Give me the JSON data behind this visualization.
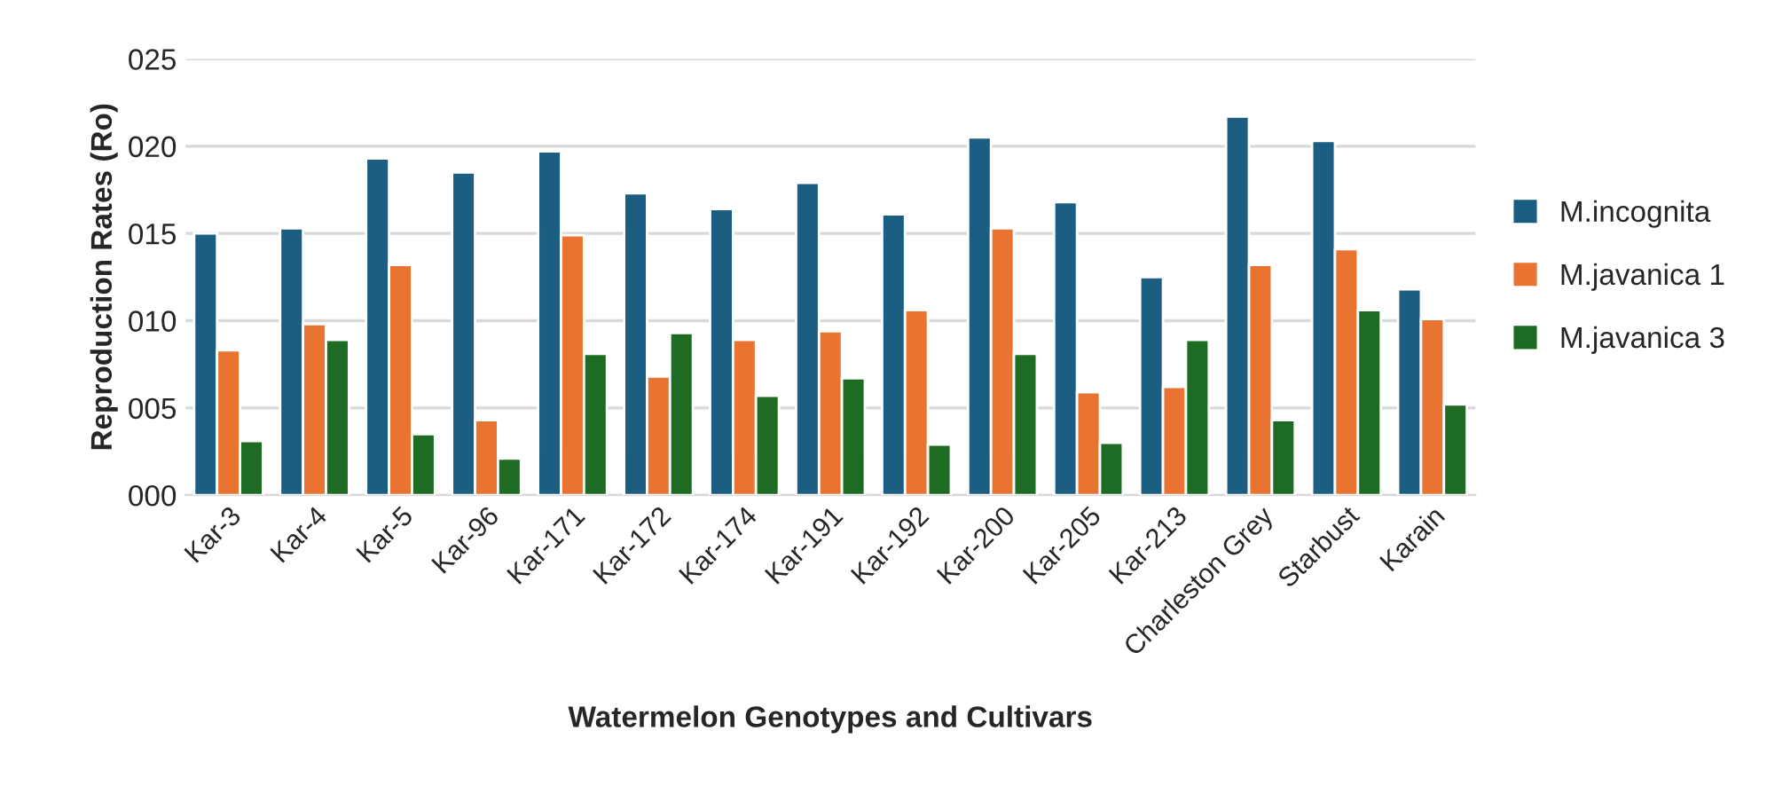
{
  "chart_data": {
    "type": "bar",
    "xlabel": "Watermelon Genotypes and Cultivars",
    "ylabel": "Reproduction Rates (Ro)",
    "categories": [
      "Kar-3",
      "Kar-4",
      "Kar-5",
      "Kar-96",
      "Kar-171",
      "Kar-172",
      "Kar-174",
      "Kar-191",
      "Kar-192",
      "Kar-200",
      "Kar-205",
      "Kar-213",
      "Charleston Grey",
      "Starbust",
      "Karain"
    ],
    "series": [
      {
        "name": "M.incognita",
        "color": "#1b5e82",
        "values": [
          15.0,
          15.3,
          19.3,
          18.5,
          19.7,
          17.3,
          16.4,
          17.9,
          16.1,
          20.5,
          16.8,
          12.5,
          21.7,
          20.3,
          11.8
        ]
      },
      {
        "name": "M.javanica 1",
        "color": "#e97432",
        "values": [
          8.3,
          9.8,
          13.2,
          4.3,
          14.9,
          6.8,
          8.9,
          9.4,
          10.6,
          15.3,
          5.9,
          6.2,
          13.2,
          14.1,
          10.1
        ]
      },
      {
        "name": "M.javanica 3",
        "color": "#1e6b23",
        "values": [
          3.1,
          8.9,
          3.5,
          2.1,
          8.1,
          9.3,
          5.7,
          6.7,
          2.9,
          8.1,
          3.0,
          8.9,
          4.3,
          10.6,
          5.2
        ]
      }
    ],
    "ylim": [
      0,
      25
    ],
    "yticks": [
      {
        "value": 0,
        "label": "000"
      },
      {
        "value": 5,
        "label": "005"
      },
      {
        "value": 10,
        "label": "010"
      },
      {
        "value": 15,
        "label": "015"
      },
      {
        "value": 20,
        "label": "020"
      },
      {
        "value": 25,
        "label": "025"
      }
    ],
    "grid": "y",
    "legend": "right"
  }
}
